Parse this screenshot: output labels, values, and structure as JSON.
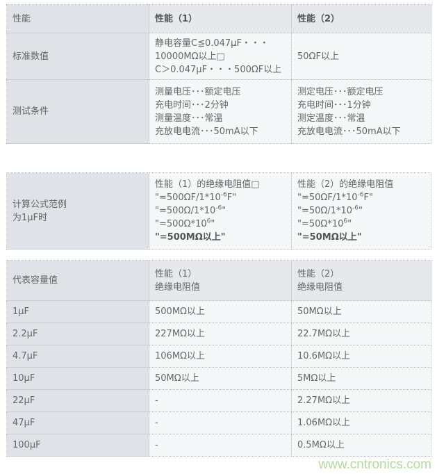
{
  "table1": {
    "rows": [
      {
        "cells": [
          [
            "性能"
          ],
          [
            "性能（1）"
          ],
          [
            "性能（2）"
          ]
        ],
        "header": true,
        "height": 41
      },
      {
        "cells": [
          [
            "标准数值"
          ],
          [
            "静电容量C≦0.047μF・・・",
            "10000MΩ以上□",
            "C＞0.047μF・・・500ΩF以上"
          ],
          [
            "50ΩF以上"
          ]
        ],
        "height": 67
      },
      {
        "cells": [
          [
            "测试条件"
          ],
          [
            "测量电压･･･额定电压",
            "充电时间･･･2分钟",
            "测量温度･･･常温",
            "充放电电流･･･50mA以下"
          ],
          [
            "测定电压･･･额定电压",
            "充电时间･･･1分钟",
            "测定温度･･･常温",
            "充放电电流･･･50mA以下"
          ]
        ],
        "height": 92
      }
    ]
  },
  "table2": {
    "label": [
      "计算公式范例",
      "为1μF时"
    ],
    "col1": [
      {
        "text": "性能（1）的绝缘电阻值□"
      },
      {
        "text": "\"=500ΩF/1*10",
        "sup": "-6",
        "tail": "F\""
      },
      {
        "text": "\"=500Ω/1*10",
        "sup": "-6",
        "tail": "\""
      },
      {
        "text": "\"=500Ω*10",
        "sup": "6",
        "tail": "\""
      },
      {
        "text": "\"=500MΩ以上\"",
        "bold": true
      }
    ],
    "col2": [
      {
        "text": "性能（2）的绝缘电阻值"
      },
      {
        "text": "\"=50ΩF/1*10",
        "sup": "-6",
        "tail": "F\""
      },
      {
        "text": "\"=50Ω/1*10",
        "sup": "-6",
        "tail": "\""
      },
      {
        "text": "\"=50Ω*10",
        "sup": "6",
        "tail": "\""
      },
      {
        "text": "\"=50MΩ以上\"",
        "bold": true
      }
    ]
  },
  "table3": {
    "header": [
      [
        "代表容量值"
      ],
      [
        "性能（1）",
        "绝缘电阻值"
      ],
      [
        "性能（2）",
        "绝缘电阻值"
      ]
    ],
    "rows": [
      [
        "1μF",
        "500MΩ以上",
        "50MΩ以上"
      ],
      [
        "2.2μF",
        "227MΩ以上",
        "22.7MΩ以上"
      ],
      [
        "4.7μF",
        "106MΩ以上",
        "10.6MΩ以上"
      ],
      [
        "10μF",
        "50MΩ以上",
        "5MΩ以上"
      ],
      [
        "22μF",
        "-",
        "2.27MΩ以上"
      ],
      [
        "47μF",
        "-",
        "1.06MΩ以上"
      ],
      [
        "100μF",
        "-",
        "0.5MΩ以上"
      ]
    ]
  },
  "watermark": "www.cntronics.com"
}
